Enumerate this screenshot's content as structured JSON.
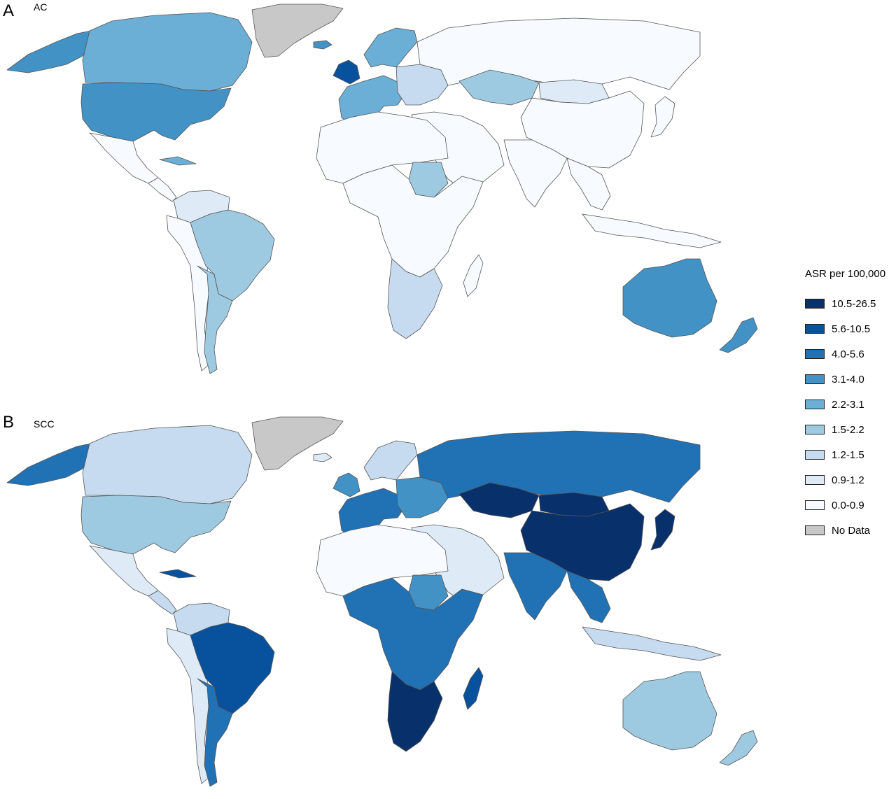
{
  "panels": [
    {
      "letter": "A",
      "title": "AC"
    },
    {
      "letter": "B",
      "title": "SCC"
    }
  ],
  "legend": {
    "title": "ASR per 100,000",
    "items": [
      {
        "label": "10.5-26.5",
        "color": "#08306b"
      },
      {
        "label": "5.6-10.5",
        "color": "#08519c"
      },
      {
        "label": "4.0-5.6",
        "color": "#2171b5"
      },
      {
        "label": "3.1-4.0",
        "color": "#4292c6"
      },
      {
        "label": "2.2-3.1",
        "color": "#6baed6"
      },
      {
        "label": "1.5-2.2",
        "color": "#9ecae1"
      },
      {
        "label": "1.2-1.5",
        "color": "#c6dbef"
      },
      {
        "label": "0.9-1.2",
        "color": "#deebf7"
      },
      {
        "label": "0.0-0.9",
        "color": "#f7fbff"
      },
      {
        "label": "No Data",
        "color": "#c8c8c8"
      }
    ]
  },
  "regions": {
    "ac": {
      "alaska": "#4292c6",
      "canada": "#6baed6",
      "usa": "#4292c6",
      "greenland": "#c8c8c8",
      "iceland": "#4292c6",
      "mexico": "#f7fbff",
      "central_america": "#f7fbff",
      "cuba": "#6baed6",
      "colombia_venezuela": "#deebf7",
      "brazil": "#9ecae1",
      "peru_chile": "#f7fbff",
      "argentina": "#9ecae1",
      "uk": "#08519c",
      "western_europe": "#6baed6",
      "scandinavia": "#6baed6",
      "eastern_europe": "#c6dbef",
      "russia": "#f7fbff",
      "kazakhstan": "#9ecae1",
      "mongolia": "#deebf7",
      "china": "#f7fbff",
      "japan": "#f7fbff",
      "middle_east": "#f7fbff",
      "india": "#f7fbff",
      "se_asia": "#f7fbff",
      "indonesia": "#f7fbff",
      "north_africa": "#f7fbff",
      "sudan": "#9ecae1",
      "central_africa": "#f7fbff",
      "southern_africa": "#c6dbef",
      "madagascar": "#f7fbff",
      "australia": "#4292c6",
      "new_zealand": "#4292c6"
    },
    "scc": {
      "alaska": "#2171b5",
      "canada": "#c6dbef",
      "usa": "#9ecae1",
      "greenland": "#c8c8c8",
      "iceland": "#deebf7",
      "mexico": "#deebf7",
      "central_america": "#c6dbef",
      "cuba": "#08519c",
      "colombia_venezuela": "#c6dbef",
      "brazil": "#08519c",
      "peru_chile": "#deebf7",
      "argentina": "#2171b5",
      "uk": "#4292c6",
      "western_europe": "#2171b5",
      "scandinavia": "#c6dbef",
      "eastern_europe": "#4292c6",
      "russia": "#2171b5",
      "kazakhstan": "#08306b",
      "mongolia": "#08306b",
      "china": "#08306b",
      "japan": "#08306b",
      "middle_east": "#deebf7",
      "india": "#2171b5",
      "se_asia": "#2171b5",
      "indonesia": "#c6dbef",
      "north_africa": "#f7fbff",
      "sudan": "#4292c6",
      "central_africa": "#2171b5",
      "southern_africa": "#08306b",
      "madagascar": "#08519c",
      "australia": "#9ecae1",
      "new_zealand": "#9ecae1"
    }
  }
}
